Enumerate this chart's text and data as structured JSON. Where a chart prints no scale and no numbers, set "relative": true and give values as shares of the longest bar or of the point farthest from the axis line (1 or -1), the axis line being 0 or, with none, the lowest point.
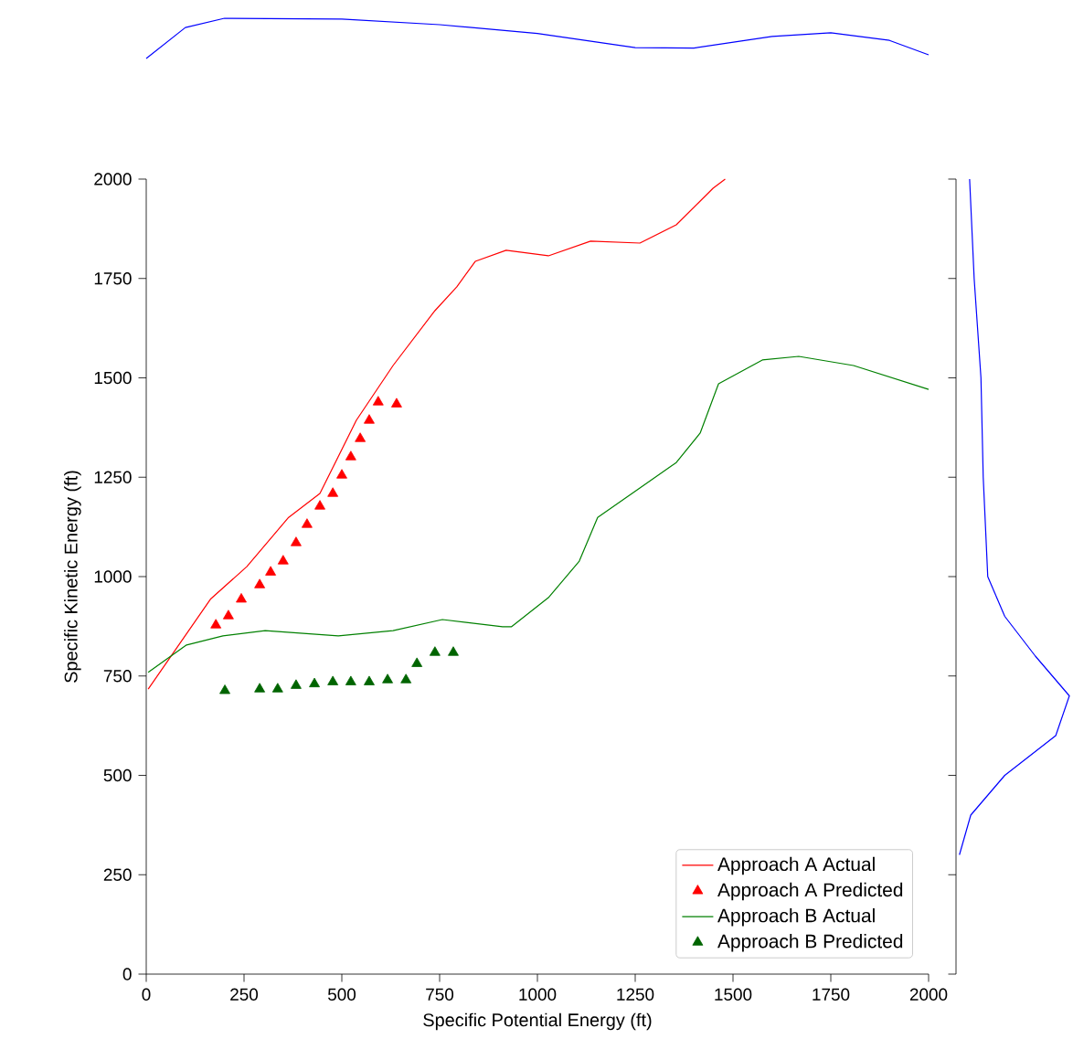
{
  "chart_data": [
    {
      "type": "line",
      "relative": true,
      "xlim": [
        0,
        2000
      ],
      "tick_labels": false,
      "series": [
        {
          "color": "#0000ff",
          "x": [
            0,
            100,
            200,
            500,
            750,
            1000,
            1250,
            1400,
            1600,
            1750,
            1900,
            2000
          ],
          "values": [
            0,
            0.77,
            1,
            0.98,
            0.84,
            0.62,
            0.27,
            0.26,
            0.55,
            0.64,
            0.45,
            0.09
          ]
        }
      ]
    },
    {
      "type": "scatter",
      "xlabel": "Specific Potential Energy (ft)",
      "ylabel": "Specific Kinetic Energy (ft)",
      "xlim": [
        0,
        2000
      ],
      "ylim": [
        0,
        2000
      ],
      "xticks": [
        0,
        250,
        500,
        750,
        1000,
        1250,
        1500,
        1750,
        2000
      ],
      "yticks": [
        0,
        250,
        500,
        750,
        1000,
        1250,
        1500,
        1750,
        2000
      ],
      "legend": "bottom right",
      "grid": false,
      "series": [
        {
          "name": "Approach A Actual",
          "type": "line",
          "marker": "none",
          "color": "#ff0000",
          "x": [
            5,
            164,
            257,
            364,
            444,
            537,
            631,
            738,
            794,
            841,
            920,
            1028,
            1136,
            1262,
            1355,
            1449,
            1480
          ],
          "values": [
            717,
            943,
            1025,
            1149,
            1209,
            1393,
            1531,
            1669,
            1729,
            1793,
            1821,
            1807,
            1844,
            1839,
            1885,
            1977,
            2000
          ]
        },
        {
          "name": "Approach A Predicted",
          "type": "scatter",
          "marker": "triangle",
          "color": "#ff0000",
          "x": [
            178,
            210,
            243,
            290,
            318,
            350,
            383,
            411,
            444,
            477,
            500,
            523,
            547,
            570,
            593,
            640
          ],
          "values": [
            878,
            901,
            943,
            979,
            1011,
            1039,
            1085,
            1131,
            1177,
            1209,
            1255,
            1301,
            1347,
            1393,
            1439,
            1434
          ]
        },
        {
          "name": "Approach B Actual",
          "type": "line",
          "marker": "none",
          "color": "#008000",
          "x": [
            5,
            103,
            196,
            304,
            491,
            631,
            757,
            911,
            934,
            1028,
            1107,
            1154,
            1262,
            1355,
            1416,
            1463,
            1575,
            1668,
            1808,
            2000
          ],
          "values": [
            759,
            828,
            851,
            864,
            851,
            864,
            892,
            874,
            874,
            947,
            1039,
            1149,
            1223,
            1287,
            1361,
            1485,
            1545,
            1554,
            1531,
            1471
          ]
        },
        {
          "name": "Approach B Predicted",
          "type": "scatter",
          "marker": "triangle",
          "color": "#006400",
          "x": [
            201,
            290,
            336,
            383,
            430,
            477,
            523,
            570,
            617,
            664,
            692,
            738,
            785
          ],
          "values": [
            713,
            717,
            717,
            726,
            730,
            735,
            735,
            735,
            740,
            740,
            781,
            809,
            809
          ]
        }
      ]
    },
    {
      "type": "line",
      "orientation": "horizontal",
      "relative": true,
      "ylim": [
        0,
        2000
      ],
      "yticks": [
        0,
        250,
        500,
        750,
        1000,
        1250,
        1500,
        1750,
        2000
      ],
      "tick_labels": false,
      "series": [
        {
          "color": "#0000ff",
          "x": [
            300,
            400,
            500,
            600,
            700,
            800,
            900,
            1000,
            1250,
            1500,
            1750,
            2000
          ],
          "values": [
            0.03,
            0.13,
            0.43,
            0.88,
            1,
            0.7,
            0.43,
            0.28,
            0.24,
            0.22,
            0.16,
            0.12
          ]
        }
      ]
    }
  ]
}
